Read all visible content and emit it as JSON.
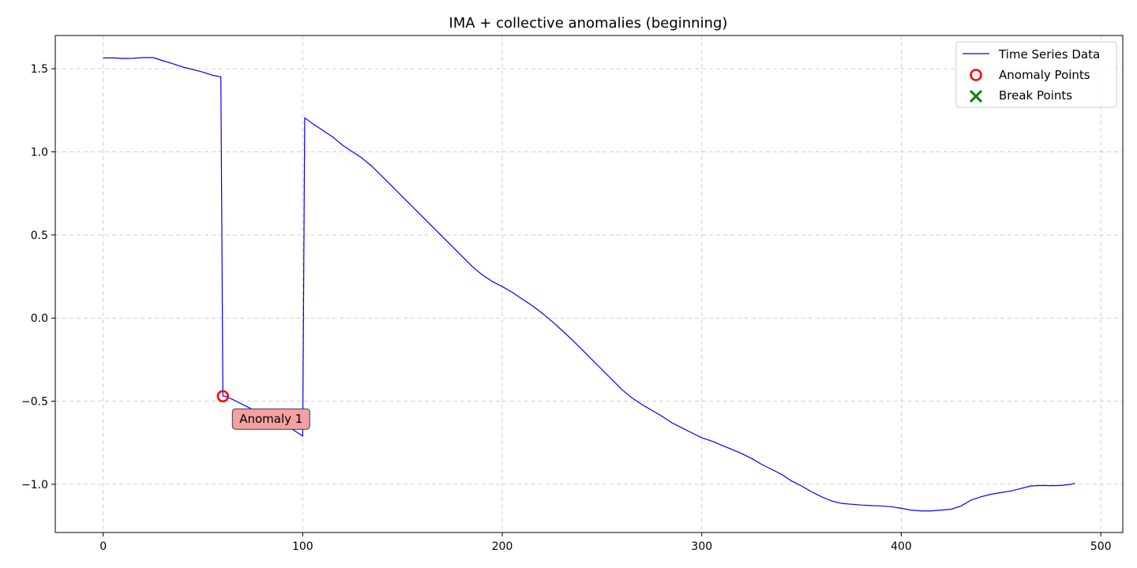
{
  "chart_data": {
    "type": "line",
    "title": "IMA + collective anomalies (beginning)",
    "xlabel": "",
    "ylabel": "",
    "xlim": [
      -24,
      511
    ],
    "ylim": [
      -1.29,
      1.7
    ],
    "xticks": [
      0,
      100,
      200,
      300,
      400,
      500
    ],
    "yticks": [
      -1.0,
      -0.5,
      0.0,
      0.5,
      1.0,
      1.5
    ],
    "ytick_labels": [
      "−1.0",
      "−0.5",
      "0.0",
      "0.5",
      "1.0",
      "1.5"
    ],
    "grid": true,
    "legend_position": "top-right",
    "colors": {
      "line": "#0000ff",
      "anomaly": "#ff0000",
      "break": "#008000",
      "annotation_fill": "#f4a0a0"
    },
    "series": [
      {
        "name": "Time Series Data",
        "x": [
          0,
          5,
          10,
          15,
          20,
          25,
          30,
          35,
          40,
          45,
          50,
          55,
          59,
          60,
          61,
          65,
          70,
          75,
          80,
          85,
          90,
          95,
          100,
          101,
          105,
          110,
          115,
          120,
          125,
          130,
          135,
          140,
          145,
          150,
          155,
          160,
          165,
          170,
          175,
          180,
          185,
          190,
          195,
          200,
          205,
          210,
          215,
          220,
          225,
          230,
          235,
          240,
          245,
          250,
          255,
          260,
          265,
          270,
          275,
          280,
          285,
          290,
          295,
          300,
          305,
          310,
          315,
          320,
          325,
          330,
          335,
          340,
          345,
          350,
          355,
          360,
          365,
          370,
          375,
          380,
          385,
          390,
          395,
          400,
          405,
          410,
          415,
          420,
          425,
          430,
          435,
          440,
          445,
          450,
          455,
          460,
          465,
          470,
          475,
          480,
          485,
          487
        ],
        "values": [
          1.565,
          1.565,
          1.562,
          1.563,
          1.567,
          1.567,
          1.548,
          1.53,
          1.51,
          1.495,
          1.48,
          1.46,
          1.452,
          -0.47,
          -0.47,
          -0.49,
          -0.52,
          -0.55,
          -0.58,
          -0.61,
          -0.64,
          -0.67,
          -0.71,
          1.205,
          1.17,
          1.13,
          1.09,
          1.04,
          1.0,
          0.96,
          0.91,
          0.85,
          0.79,
          0.73,
          0.67,
          0.61,
          0.55,
          0.49,
          0.43,
          0.37,
          0.31,
          0.26,
          0.22,
          0.19,
          0.155,
          0.115,
          0.075,
          0.03,
          -0.02,
          -0.075,
          -0.13,
          -0.19,
          -0.25,
          -0.31,
          -0.37,
          -0.43,
          -0.48,
          -0.52,
          -0.555,
          -0.59,
          -0.63,
          -0.66,
          -0.69,
          -0.72,
          -0.74,
          -0.765,
          -0.79,
          -0.815,
          -0.845,
          -0.88,
          -0.91,
          -0.94,
          -0.98,
          -1.01,
          -1.045,
          -1.075,
          -1.1,
          -1.115,
          -1.12,
          -1.125,
          -1.128,
          -1.13,
          -1.135,
          -1.145,
          -1.155,
          -1.16,
          -1.16,
          -1.155,
          -1.15,
          -1.13,
          -1.095,
          -1.075,
          -1.06,
          -1.05,
          -1.04,
          -1.025,
          -1.01,
          -1.007,
          -1.008,
          -1.007,
          -1.0,
          -0.993
        ]
      }
    ],
    "anomaly_points": {
      "name": "Anomaly Points",
      "x": [
        60
      ],
      "y": [
        -0.47
      ]
    },
    "break_points": {
      "name": "Break Points",
      "x": [],
      "y": []
    },
    "annotations": [
      {
        "text": "Anomaly 1",
        "x": 60,
        "y": -0.47
      }
    ]
  }
}
